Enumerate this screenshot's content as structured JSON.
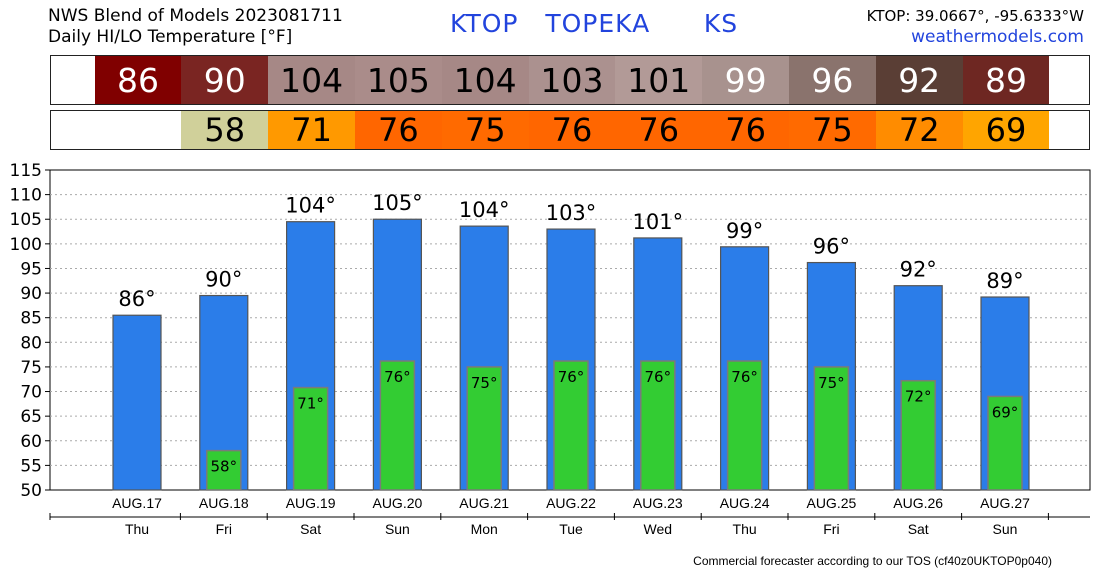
{
  "header": {
    "line1": "NWS Blend of Models 2023081711",
    "line2": "Daily HI/LO Temperature [°F]",
    "station_id": "KTOP",
    "city": "TOPEKA",
    "state": "KS",
    "coords": "KTOP: 39.0667°, -95.6333°W",
    "site": "weathermodels.com"
  },
  "footer": {
    "text": "Commercial forecaster according to our TOS (cf40z0UKTOP0p040)"
  },
  "hi_strip": [
    {
      "value": "86",
      "bg": "#800000",
      "fg": "#ffffff"
    },
    {
      "value": "90",
      "bg": "#7a2522",
      "fg": "#ffffff"
    },
    {
      "value": "104",
      "bg": "#a68886",
      "fg": "#000000"
    },
    {
      "value": "105",
      "bg": "#aa8c8a",
      "fg": "#000000"
    },
    {
      "value": "104",
      "bg": "#a68886",
      "fg": "#000000"
    },
    {
      "value": "103",
      "bg": "#ab918f",
      "fg": "#000000"
    },
    {
      "value": "101",
      "bg": "#b29a97",
      "fg": "#000000"
    },
    {
      "value": "99",
      "bg": "#a8928e",
      "fg": "#ffffff"
    },
    {
      "value": "96",
      "bg": "#8a736d",
      "fg": "#ffffff"
    },
    {
      "value": "92",
      "bg": "#5a3e35",
      "fg": "#ffffff"
    },
    {
      "value": "89",
      "bg": "#6e2722",
      "fg": "#ffffff"
    }
  ],
  "lo_strip": [
    {
      "value": "",
      "bg": "#ffffff",
      "fg": "#000000"
    },
    {
      "value": "58",
      "bg": "#d0d09a",
      "fg": "#000000"
    },
    {
      "value": "71",
      "bg": "#ff9900",
      "fg": "#000000"
    },
    {
      "value": "76",
      "bg": "#ff6600",
      "fg": "#000000"
    },
    {
      "value": "75",
      "bg": "#ff6a00",
      "fg": "#000000"
    },
    {
      "value": "76",
      "bg": "#ff6600",
      "fg": "#000000"
    },
    {
      "value": "76",
      "bg": "#ff6600",
      "fg": "#000000"
    },
    {
      "value": "76",
      "bg": "#ff6600",
      "fg": "#000000"
    },
    {
      "value": "75",
      "bg": "#ff6a00",
      "fg": "#000000"
    },
    {
      "value": "72",
      "bg": "#ff8c00",
      "fg": "#000000"
    },
    {
      "value": "69",
      "bg": "#ffa500",
      "fg": "#000000"
    }
  ],
  "chart_data": {
    "type": "bar",
    "categories": [
      "AUG.17",
      "AUG.18",
      "AUG.19",
      "AUG.20",
      "AUG.21",
      "AUG.22",
      "AUG.23",
      "AUG.24",
      "AUG.25",
      "AUG.26",
      "AUG.27"
    ],
    "days": [
      "Thu",
      "Fri",
      "Sat",
      "Sun",
      "Mon",
      "Tue",
      "Wed",
      "Thu",
      "Fri",
      "Sat",
      "Sun"
    ],
    "series": [
      {
        "values": [
          85.5,
          89.5,
          104.5,
          105,
          103.6,
          103,
          101.2,
          99.4,
          96.2,
          91.5,
          89.2
        ],
        "labels": [
          "86°",
          "90°",
          "104°",
          "105°",
          "104°",
          "103°",
          "101°",
          "99°",
          "96°",
          "92°",
          "89°"
        ],
        "color": "#2b7de9"
      },
      {
        "values": [
          null,
          58,
          70.8,
          76.2,
          75,
          76.2,
          76.2,
          76.2,
          75,
          72.2,
          69
        ],
        "labels": [
          "",
          "58°",
          "71°",
          "76°",
          "75°",
          "76°",
          "76°",
          "76°",
          "75°",
          "72°",
          "69°"
        ],
        "color": "#33cc33"
      }
    ],
    "ylim": [
      50,
      115
    ],
    "yticks": [
      50,
      55,
      60,
      65,
      70,
      75,
      80,
      85,
      90,
      95,
      100,
      105,
      110,
      115
    ],
    "grid": true
  }
}
